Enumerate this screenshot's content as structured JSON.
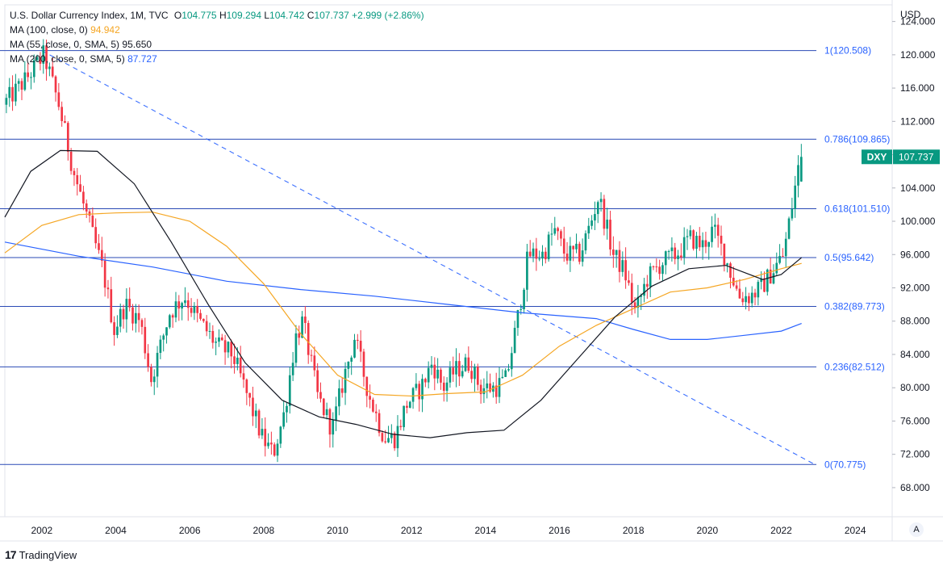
{
  "legend": {
    "title": "U.S. Dollar Currency Index, 1M, TVC",
    "o_label": "O",
    "o_value": "104.775",
    "h_label": "H",
    "h_value": "109.294",
    "l_label": "L",
    "l_value": "104.742",
    "c_label": "C",
    "c_value": "107.737",
    "change": "+2.999 (+2.86%)",
    "ma1_label": "MA (100, close, 0)",
    "ma1_value": "94.942",
    "ma1_color": "#f5a623",
    "ma2_label": "MA (55, close, 0, SMA, 5)",
    "ma2_value": "95.650",
    "ma2_color": "#131722",
    "ma3_label": "MA (200, close, 0, SMA, 5)",
    "ma3_value": "87.727",
    "ma3_color": "#2962ff"
  },
  "branding": {
    "logo": "17",
    "name": "TradingView"
  },
  "axis_corner": "A",
  "chart_data": {
    "type": "candlestick",
    "symbol_badge": "DXY",
    "last_price": "107.737",
    "currency_label": "USD",
    "x_range": [
      2001.0,
      2025.0
    ],
    "y_range": [
      64.5,
      126.0
    ],
    "x_ticks": [
      "2002",
      "2004",
      "2006",
      "2008",
      "2010",
      "2012",
      "2014",
      "2016",
      "2018",
      "2020",
      "2022",
      "2024"
    ],
    "y_ticks": [
      "124.000",
      "120.000",
      "116.000",
      "112.000",
      "108.000",
      "104.000",
      "100.000",
      "96.000",
      "92.000",
      "88.000",
      "84.000",
      "80.000",
      "76.000",
      "72.000",
      "68.000"
    ],
    "fib_levels": [
      {
        "label": "1(120.508)",
        "value": 120.508
      },
      {
        "label": "0.786(109.865)",
        "value": 109.865
      },
      {
        "label": "0.618(101.510)",
        "value": 101.51
      },
      {
        "label": "0.5(95.642)",
        "value": 95.642
      },
      {
        "label": "0.382(89.773)",
        "value": 89.773
      },
      {
        "label": "0.236(82.512)",
        "value": 82.512
      },
      {
        "label": "0(70.775)",
        "value": 70.775
      }
    ],
    "trendline": {
      "x1": 2002.0,
      "y1": 120.5,
      "x2": 2022.9,
      "y2": 70.8
    },
    "anchors": [
      [
        2001.0,
        114
      ],
      [
        2001.6,
        117
      ],
      [
        2002.1,
        120
      ],
      [
        2002.5,
        114
      ],
      [
        2002.9,
        106
      ],
      [
        2003.3,
        100
      ],
      [
        2003.7,
        94
      ],
      [
        2004.0,
        87
      ],
      [
        2004.3,
        90
      ],
      [
        2004.7,
        88
      ],
      [
        2005.0,
        81
      ],
      [
        2005.5,
        89
      ],
      [
        2005.9,
        91
      ],
      [
        2006.3,
        88
      ],
      [
        2006.8,
        85
      ],
      [
        2007.2,
        84
      ],
      [
        2007.6,
        79
      ],
      [
        2008.0,
        74
      ],
      [
        2008.3,
        72
      ],
      [
        2008.6,
        77
      ],
      [
        2008.9,
        86
      ],
      [
        2009.1,
        88
      ],
      [
        2009.5,
        79
      ],
      [
        2009.9,
        75
      ],
      [
        2010.2,
        81
      ],
      [
        2010.5,
        86
      ],
      [
        2010.9,
        79
      ],
      [
        2011.3,
        74
      ],
      [
        2011.6,
        74
      ],
      [
        2011.9,
        78
      ],
      [
        2012.3,
        80
      ],
      [
        2012.6,
        83
      ],
      [
        2012.9,
        80
      ],
      [
        2013.2,
        82
      ],
      [
        2013.6,
        83
      ],
      [
        2013.9,
        80
      ],
      [
        2014.3,
        80
      ],
      [
        2014.6,
        81
      ],
      [
        2014.9,
        88
      ],
      [
        2015.2,
        96
      ],
      [
        2015.6,
        96
      ],
      [
        2015.9,
        99
      ],
      [
        2016.2,
        96
      ],
      [
        2016.6,
        96
      ],
      [
        2016.9,
        100
      ],
      [
        2017.1,
        103
      ],
      [
        2017.5,
        96
      ],
      [
        2017.8,
        94
      ],
      [
        2018.1,
        89
      ],
      [
        2018.4,
        93
      ],
      [
        2018.8,
        95
      ],
      [
        2019.2,
        96
      ],
      [
        2019.6,
        98
      ],
      [
        2019.9,
        97
      ],
      [
        2020.2,
        99
      ],
      [
        2020.5,
        96
      ],
      [
        2020.9,
        91
      ],
      [
        2021.2,
        91
      ],
      [
        2021.5,
        92
      ],
      [
        2021.8,
        94
      ],
      [
        2022.1,
        96
      ],
      [
        2022.3,
        101
      ],
      [
        2022.45,
        105
      ],
      [
        2022.55,
        107.7
      ]
    ],
    "ma100": [
      [
        2001.0,
        96.2
      ],
      [
        2002.0,
        99.5
      ],
      [
        2003.0,
        100.8
      ],
      [
        2004.0,
        101.0
      ],
      [
        2005.0,
        101.1
      ],
      [
        2006.0,
        100.0
      ],
      [
        2007.0,
        97.0
      ],
      [
        2008.0,
        92.5
      ],
      [
        2009.0,
        86.5
      ],
      [
        2010.0,
        81.5
      ],
      [
        2011.0,
        79.2
      ],
      [
        2012.0,
        79.0
      ],
      [
        2013.0,
        79.3
      ],
      [
        2014.0,
        79.5
      ],
      [
        2015.0,
        81.5
      ],
      [
        2016.0,
        85.0
      ],
      [
        2017.0,
        87.5
      ],
      [
        2018.0,
        89.5
      ],
      [
        2019.0,
        91.5
      ],
      [
        2020.0,
        92.0
      ],
      [
        2021.0,
        93.0
      ],
      [
        2022.0,
        94.3
      ],
      [
        2022.55,
        94.942
      ]
    ],
    "ma55": [
      [
        2001.0,
        100.5
      ],
      [
        2001.7,
        106.0
      ],
      [
        2002.5,
        108.5
      ],
      [
        2003.5,
        108.4
      ],
      [
        2004.5,
        104.5
      ],
      [
        2005.5,
        97.5
      ],
      [
        2006.5,
        90.0
      ],
      [
        2007.5,
        83.0
      ],
      [
        2008.5,
        78.5
      ],
      [
        2009.5,
        76.5
      ],
      [
        2010.5,
        75.6
      ],
      [
        2011.5,
        74.4
      ],
      [
        2012.5,
        74.0
      ],
      [
        2013.5,
        74.6
      ],
      [
        2014.5,
        74.9
      ],
      [
        2015.5,
        78.5
      ],
      [
        2016.5,
        83.5
      ],
      [
        2017.5,
        88.5
      ],
      [
        2018.5,
        92.2
      ],
      [
        2019.5,
        94.3
      ],
      [
        2020.5,
        94.7
      ],
      [
        2021.5,
        93.0
      ],
      [
        2022.0,
        93.6
      ],
      [
        2022.55,
        95.65
      ]
    ],
    "ma200": [
      [
        2001.0,
        97.5
      ],
      [
        2003.0,
        95.8
      ],
      [
        2005.0,
        94.5
      ],
      [
        2007.0,
        92.8
      ],
      [
        2009.0,
        91.8
      ],
      [
        2011.0,
        91.0
      ],
      [
        2013.0,
        90.0
      ],
      [
        2015.0,
        89.0
      ],
      [
        2017.0,
        88.3
      ],
      [
        2018.0,
        87.0
      ],
      [
        2019.0,
        85.8
      ],
      [
        2020.0,
        85.8
      ],
      [
        2021.0,
        86.3
      ],
      [
        2022.0,
        86.8
      ],
      [
        2022.55,
        87.727
      ]
    ]
  }
}
